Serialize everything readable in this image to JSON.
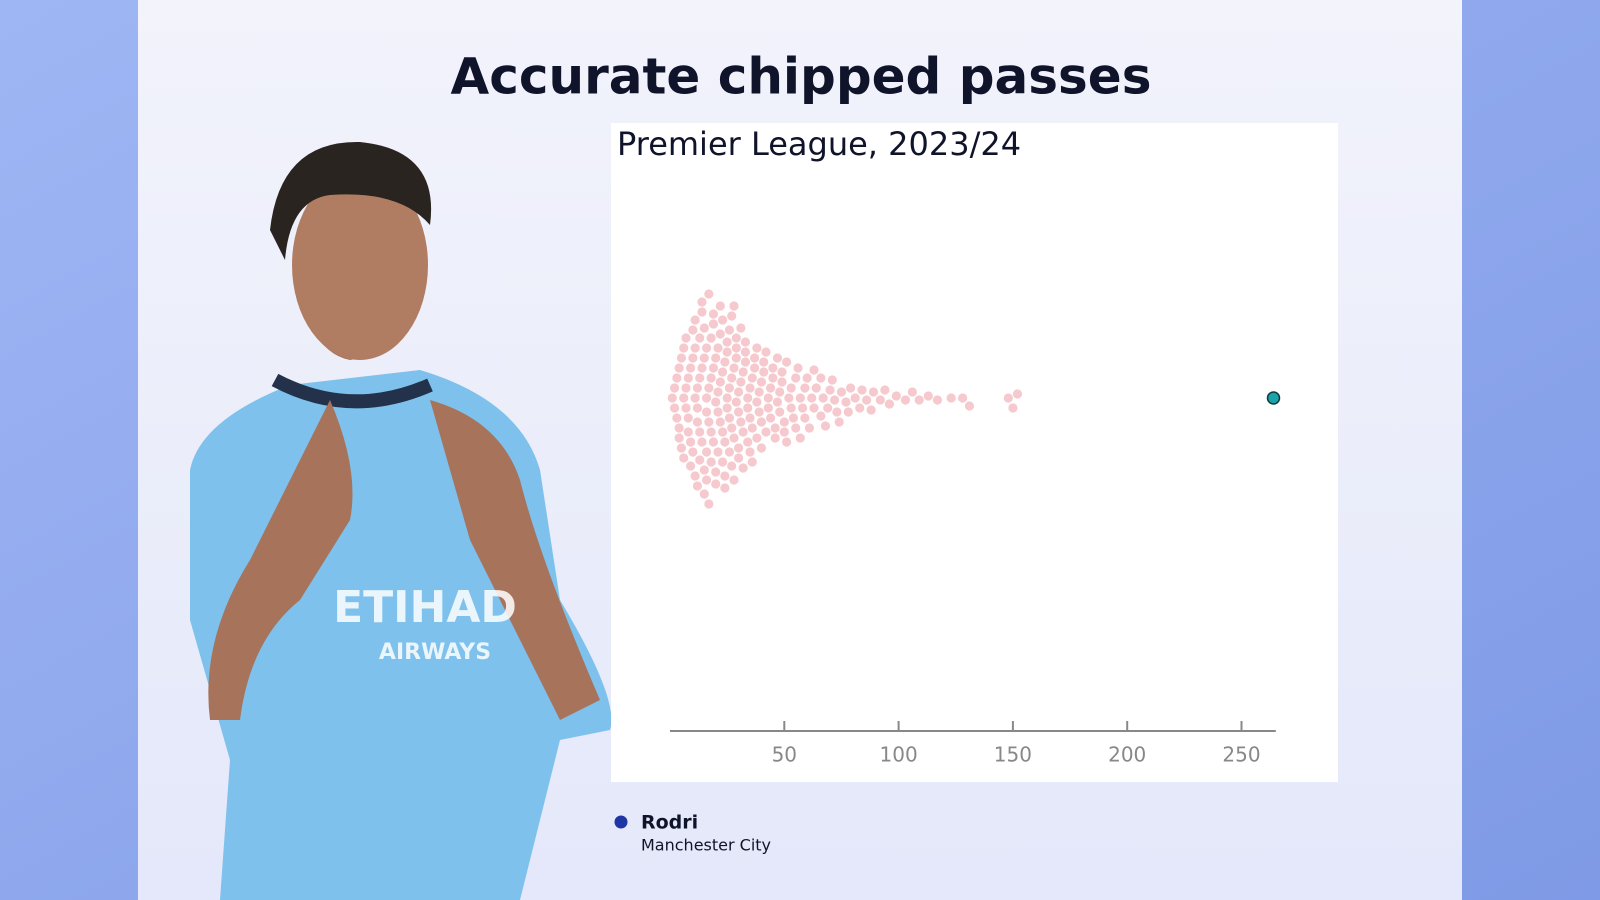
{
  "chart_data": {
    "type": "beeswarm",
    "title": "Accurate chipped passes",
    "subtitle": "Premier League, 2023/24",
    "xlim": [
      0,
      265
    ],
    "xticks": [
      50,
      100,
      150,
      200,
      250
    ],
    "series": [
      {
        "color": "#f5c9cd",
        "values": [
          1,
          2,
          2,
          3,
          3,
          4,
          4,
          4,
          5,
          5,
          6,
          6,
          6,
          7,
          7,
          7,
          8,
          8,
          8,
          9,
          9,
          9,
          10,
          10,
          10,
          11,
          11,
          11,
          11,
          12,
          12,
          12,
          12,
          13,
          13,
          13,
          13,
          14,
          14,
          14,
          14,
          15,
          15,
          15,
          15,
          16,
          16,
          16,
          16,
          16,
          17,
          17,
          17,
          17,
          18,
          18,
          18,
          18,
          19,
          19,
          19,
          19,
          20,
          20,
          20,
          20,
          21,
          21,
          21,
          21,
          22,
          22,
          22,
          22,
          23,
          23,
          23,
          23,
          24,
          24,
          24,
          24,
          25,
          25,
          25,
          25,
          26,
          26,
          26,
          26,
          27,
          27,
          27,
          27,
          28,
          28,
          28,
          28,
          29,
          29,
          29,
          29,
          30,
          30,
          30,
          30,
          31,
          31,
          31,
          32,
          32,
          32,
          33,
          33,
          33,
          34,
          34,
          34,
          35,
          35,
          35,
          36,
          36,
          36,
          37,
          37,
          38,
          38,
          38,
          39,
          39,
          40,
          40,
          40,
          41,
          41,
          42,
          42,
          43,
          43,
          44,
          44,
          45,
          45,
          46,
          46,
          47,
          47,
          48,
          48,
          49,
          49,
          50,
          50,
          51,
          51,
          52,
          53,
          53,
          54,
          55,
          55,
          56,
          57,
          57,
          58,
          59,
          59,
          60,
          61,
          62,
          63,
          63,
          64,
          66,
          66,
          67,
          68,
          69,
          70,
          71,
          72,
          73,
          74,
          75,
          77,
          78,
          79,
          81,
          83,
          84,
          86,
          88,
          89,
          92,
          94,
          96,
          99,
          103,
          106,
          109,
          113,
          117,
          123,
          128,
          131,
          148,
          150,
          152
        ]
      },
      {
        "name": "Rodri",
        "team": "Manchester City",
        "color": "#1aa3a8",
        "legend_color": "#1f35a6",
        "values": [
          264
        ]
      }
    ]
  }
}
